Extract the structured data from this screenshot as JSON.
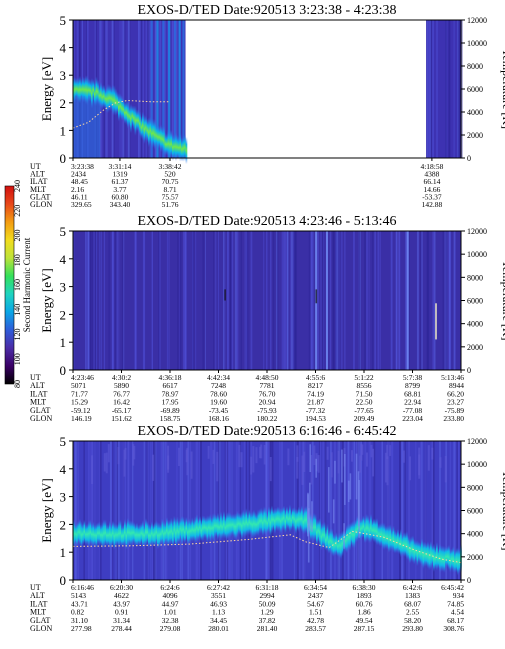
{
  "chart_data": [
    {
      "type": "heatmap",
      "title": "EXOS-D/TED   Date:920513   3:23:38 - 4:23:38",
      "ylabel": "Energy [eV]",
      "ylabel_right": "Temperature [K]",
      "ylim": [
        0,
        5
      ],
      "yticks": [
        0,
        1,
        2,
        3,
        4,
        5
      ],
      "ylim_right": [
        0,
        12000
      ],
      "yticks_right": [
        0,
        2000,
        4000,
        6000,
        8000,
        10000,
        12000
      ],
      "orbit_row_labels": [
        "UT",
        "ALT",
        "ILAT",
        "MLT",
        "GLAT",
        "GLON"
      ],
      "orbit_columns": [
        {
          "x": 0.0,
          "values": [
            "3:23:38",
            "2434",
            "48.45",
            "2.16",
            "46.11",
            "329.65"
          ]
        },
        {
          "x": 0.121,
          "values": [
            "3:31:14",
            "1319",
            "61.37",
            "3.77",
            "60.80",
            "343.40"
          ]
        },
        {
          "x": 0.25,
          "values": [
            "3:38:42",
            "520",
            "70.75",
            "8.71",
            "75.57",
            "51.76"
          ]
        },
        {
          "x": 0.925,
          "values": [
            "4:18:58",
            "4388",
            "66.14",
            "14.66",
            "-53.37",
            "142.88"
          ]
        }
      ],
      "data_coverage": [
        {
          "from": 0.0,
          "to": 0.29
        },
        {
          "from": 0.91,
          "to": 1.0
        }
      ],
      "band_center": [
        [
          0.0,
          2.45
        ],
        [
          0.05,
          2.4
        ],
        [
          0.1,
          2.1
        ],
        [
          0.14,
          1.6
        ],
        [
          0.18,
          1.1
        ],
        [
          0.22,
          0.7
        ],
        [
          0.25,
          0.45
        ],
        [
          0.29,
          0.3
        ]
      ],
      "band_width": 0.45,
      "band_peak_color": "#6ee84a",
      "temperature_trace": [
        [
          0.0,
          2600
        ],
        [
          0.04,
          3100
        ],
        [
          0.08,
          4200
        ],
        [
          0.11,
          4800
        ],
        [
          0.14,
          5000
        ],
        [
          0.2,
          4900
        ],
        [
          0.25,
          4900
        ]
      ]
    },
    {
      "type": "heatmap",
      "title": "EXOS-D/TED   Date:920513   4:23:46 - 5:13:46",
      "ylabel": "Energy [eV]",
      "ylabel_right": "Temperature [K]",
      "ylim": [
        0,
        5
      ],
      "yticks": [
        0,
        1,
        2,
        3,
        4,
        5
      ],
      "ylim_right": [
        0,
        12000
      ],
      "yticks_right": [
        0,
        2000,
        4000,
        6000,
        8000,
        10000,
        12000
      ],
      "orbit_row_labels": [
        "UT",
        "ALT",
        "ILAT",
        "MLT",
        "GLAT",
        "GLON"
      ],
      "orbit_columns": [
        {
          "x": 0.0,
          "values": [
            "4:23:46",
            "5071",
            "71.77",
            "15.29",
            "-59.12",
            "146.19"
          ]
        },
        {
          "x": 0.125,
          "values": [
            "4:30:2",
            "5890",
            "76.77",
            "16.42",
            "-65.17",
            "151.62"
          ]
        },
        {
          "x": 0.25,
          "values": [
            "4:36:18",
            "6617",
            "78.97",
            "17.95",
            "-69.89",
            "158.75"
          ]
        },
        {
          "x": 0.375,
          "values": [
            "4:42:34",
            "7248",
            "78.60",
            "19.60",
            "-73.45",
            "168.16"
          ]
        },
        {
          "x": 0.5,
          "values": [
            "4:48:50",
            "7781",
            "76.70",
            "20.94",
            "-75.93",
            "180.22"
          ]
        },
        {
          "x": 0.625,
          "values": [
            "4:55:6",
            "8217",
            "74.19",
            "21.87",
            "-77.32",
            "194.53"
          ]
        },
        {
          "x": 0.75,
          "values": [
            "5:1:22",
            "8556",
            "71.50",
            "22.50",
            "-77.65",
            "209.49"
          ]
        },
        {
          "x": 0.875,
          "values": [
            "5:7:38",
            "8799",
            "68.81",
            "22.94",
            "-77.08",
            "223.04"
          ]
        },
        {
          "x": 1.0,
          "values": [
            "5:13:46",
            "8944",
            "66.20",
            "23.27",
            "-75.89",
            "233.80"
          ]
        }
      ],
      "streaks": [
        0.624,
        0.652,
        0.86,
        0.933
      ],
      "colorbar": {
        "label": "Second Harmonic Current",
        "ticks": [
          80,
          100,
          120,
          140,
          160,
          180,
          200,
          220,
          240
        ],
        "colors": [
          "#000000",
          "#3a0066",
          "#4b2ca6",
          "#2f5cd9",
          "#0aa6e6",
          "#1fd4c0",
          "#33e05a",
          "#bde33a",
          "#f2dc1e",
          "#f39c12",
          "#e8481a",
          "#d10f0f"
        ]
      }
    },
    {
      "type": "heatmap",
      "title": "EXOS-D/TED   Date:920513   6:16:46 - 6:45:42",
      "ylabel": "Energy [eV]",
      "ylabel_right": "Temperature [K]",
      "ylim": [
        0,
        5
      ],
      "yticks": [
        0,
        1,
        2,
        3,
        4,
        5
      ],
      "ylim_right": [
        0,
        12000
      ],
      "yticks_right": [
        0,
        2000,
        4000,
        6000,
        8000,
        10000,
        12000
      ],
      "orbit_row_labels": [
        "UT",
        "ALT",
        "ILAT",
        "MLT",
        "GLAT",
        "GLON"
      ],
      "orbit_columns": [
        {
          "x": 0.0,
          "values": [
            "6:16:46",
            "5143",
            "43.71",
            "0.82",
            "31.10",
            "277.98"
          ]
        },
        {
          "x": 0.125,
          "values": [
            "6:20:30",
            "4622",
            "43.97",
            "0.91",
            "31.34",
            "278.44"
          ]
        },
        {
          "x": 0.25,
          "values": [
            "6:24:6",
            "4096",
            "44.97",
            "1.01",
            "32.38",
            "279.08"
          ]
        },
        {
          "x": 0.375,
          "values": [
            "6:27:42",
            "3551",
            "46.93",
            "1.13",
            "34.45",
            "280.01"
          ]
        },
        {
          "x": 0.5,
          "values": [
            "6:31:18",
            "2994",
            "50.09",
            "1.29",
            "37.82",
            "281.40"
          ]
        },
        {
          "x": 0.625,
          "values": [
            "6:34:54",
            "2437",
            "54.67",
            "1.51",
            "42.78",
            "283.57"
          ]
        },
        {
          "x": 0.75,
          "values": [
            "6:38:30",
            "1893",
            "60.76",
            "1.86",
            "49.54",
            "287.15"
          ]
        },
        {
          "x": 0.875,
          "values": [
            "6:42:6",
            "1383",
            "68.07",
            "2.55",
            "58.20",
            "293.80"
          ]
        },
        {
          "x": 1.0,
          "values": [
            "6:45:42",
            "934",
            "74.85",
            "4.54",
            "68.17",
            "308.76"
          ]
        }
      ],
      "band_center": [
        [
          0.0,
          1.7
        ],
        [
          0.1,
          1.65
        ],
        [
          0.2,
          1.65
        ],
        [
          0.3,
          1.8
        ],
        [
          0.4,
          1.95
        ],
        [
          0.5,
          2.1
        ],
        [
          0.56,
          2.2
        ],
        [
          0.6,
          2.1
        ],
        [
          0.64,
          1.6
        ],
        [
          0.68,
          1.2
        ],
        [
          0.74,
          1.9
        ],
        [
          0.78,
          1.75
        ],
        [
          0.84,
          1.3
        ],
        [
          0.9,
          0.9
        ],
        [
          1.0,
          0.7
        ]
      ],
      "band_width": 0.42,
      "band_peak_color": "#33e8b0",
      "temperature_trace": [
        [
          0.0,
          2900
        ],
        [
          0.15,
          2950
        ],
        [
          0.3,
          3100
        ],
        [
          0.45,
          3500
        ],
        [
          0.56,
          3900
        ],
        [
          0.6,
          3300
        ],
        [
          0.66,
          2800
        ],
        [
          0.72,
          4200
        ],
        [
          0.8,
          3700
        ],
        [
          0.88,
          2600
        ],
        [
          0.95,
          1800
        ],
        [
          1.0,
          1500
        ]
      ]
    }
  ]
}
